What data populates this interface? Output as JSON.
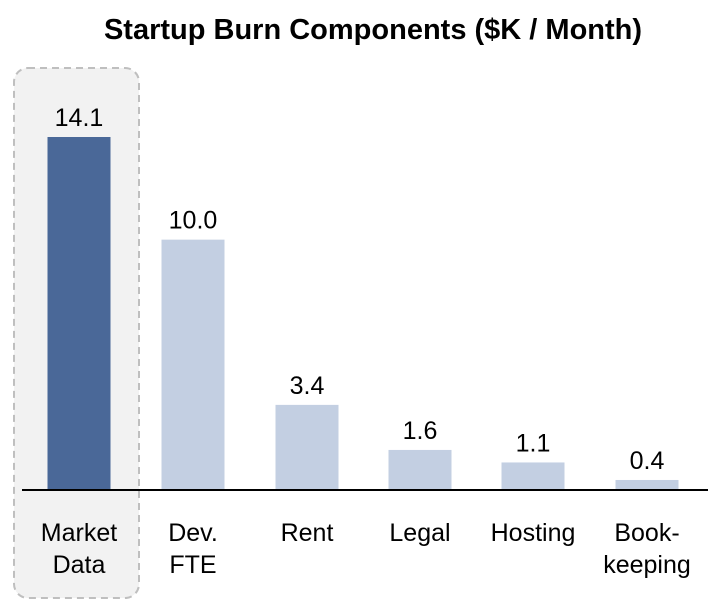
{
  "chart_data": {
    "type": "bar",
    "title": "Startup Burn Components ($K / Month)",
    "xlabel": "",
    "ylabel": "",
    "categories": [
      [
        "Market",
        "Data"
      ],
      [
        "Dev.",
        "FTE"
      ],
      [
        "Rent"
      ],
      [
        "Legal"
      ],
      [
        "Hosting"
      ],
      [
        "Book-",
        "keeping"
      ]
    ],
    "values": [
      14.1,
      10.0,
      3.4,
      1.6,
      1.1,
      0.4
    ],
    "value_labels": [
      "14.1",
      "10.0",
      "3.4",
      "1.6",
      "1.1",
      "0.4"
    ],
    "ylim": [
      0,
      14.1
    ],
    "grid": false,
    "legend": "none",
    "highlight_index": 0,
    "colors": {
      "highlight_bar": "#4a6898",
      "bar": "#c3cfe2",
      "highlight_box_fill": "#f2f2f2",
      "highlight_box_stroke": "#bfbfbf",
      "axis": "#000000"
    }
  }
}
